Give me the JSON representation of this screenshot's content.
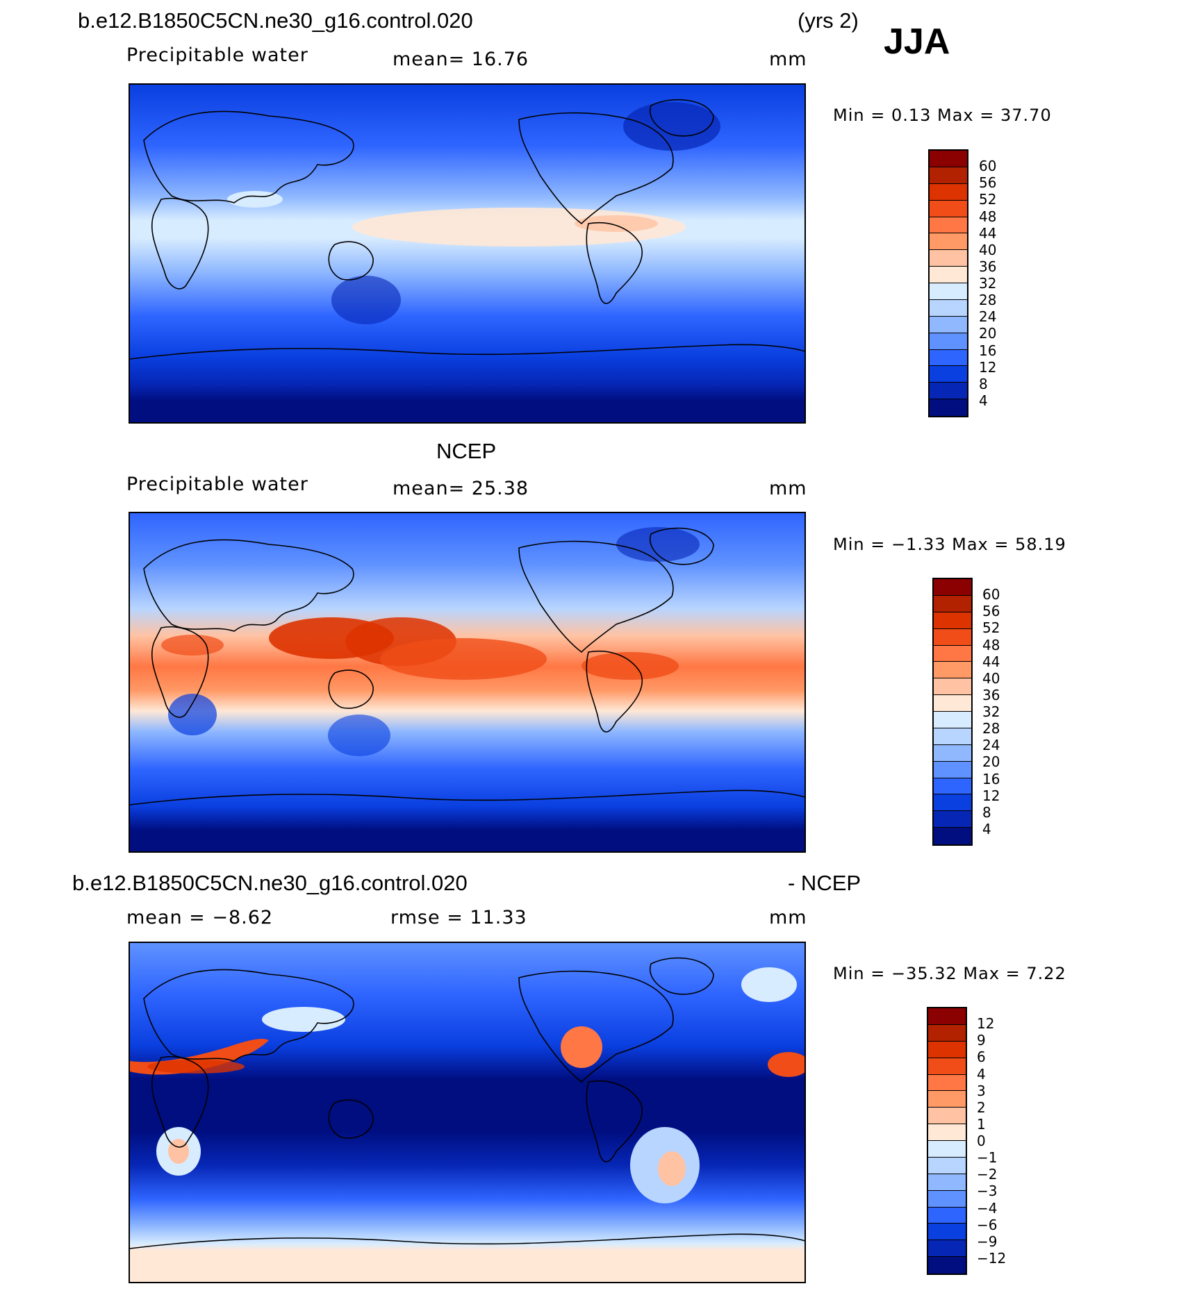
{
  "header": {
    "case_name": "b.e12.B1850C5CN.ne30_g16.control.020",
    "years": "(yrs 2)",
    "season": "JJA"
  },
  "panel1": {
    "variable": "Precipitable water",
    "mean_label": "mean=   16.76",
    "units": "mm",
    "minmax": "Min =     0.13  Max =    37.70"
  },
  "panel2": {
    "title": "NCEP",
    "variable": "Precipitable water",
    "mean_label": "mean=   25.38",
    "units": "mm",
    "minmax": "Min =   −1.33  Max =    58.19"
  },
  "panel3": {
    "title_left": "b.e12.B1850C5CN.ne30_g16.control.020",
    "title_right": "- NCEP",
    "mean_label": "mean =   −8.62",
    "rmse_label": "rmse =   11.33",
    "units": "mm",
    "minmax": "Min =  −35.32  Max =      7.22"
  },
  "colorbars": {
    "abs_levels": [
      "60",
      "56",
      "52",
      "48",
      "44",
      "40",
      "36",
      "32",
      "28",
      "24",
      "20",
      "16",
      "12",
      "8",
      "4"
    ],
    "diff_levels": [
      "12",
      "9",
      "6",
      "4",
      "3",
      "2",
      "1",
      "0",
      "−1",
      "−2",
      "−3",
      "−4",
      "−6",
      "−9",
      "−12"
    ],
    "colors": [
      "#8b0000",
      "#b22200",
      "#dd3300",
      "#f04d18",
      "#ff7744",
      "#ff9966",
      "#ffc3a3",
      "#ffe8d6",
      "#d8ecff",
      "#b8d5ff",
      "#8fb8ff",
      "#5f92ff",
      "#2f65ff",
      "#0a3fe0",
      "#0626b5",
      "#000e80"
    ]
  }
}
